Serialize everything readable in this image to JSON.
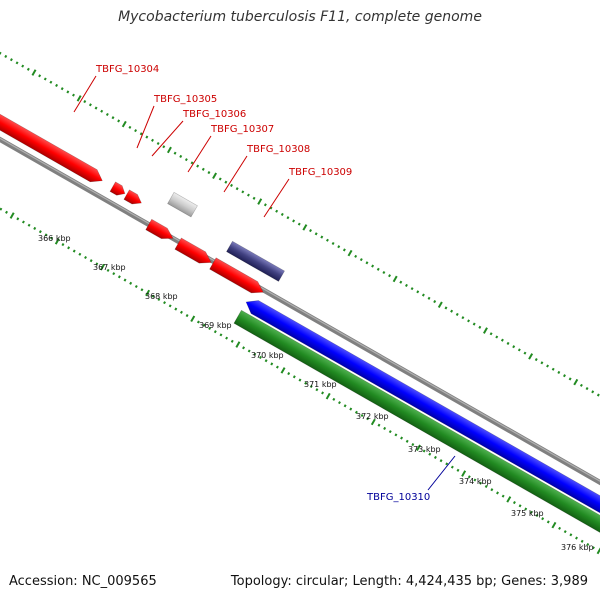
{
  "title": "Mycobacterium tuberculosis F11, complete genome",
  "footer": {
    "accession": "Accession: NC_009565",
    "summary": "Topology: circular; Length: 4,424,435 bp; Genes: 3,989"
  },
  "scale_labels": [
    "366 kbp",
    "367 kbp",
    "368 kbp",
    "369 kbp",
    "370 kbp",
    "371 kbp",
    "372 kbp",
    "373 kbp",
    "374 kbp",
    "375 kbp",
    "376 kbp"
  ],
  "genes": [
    {
      "name": "TBFG_10304",
      "strand": "+",
      "color": "#ff0000"
    },
    {
      "name": "TBFG_10305",
      "strand": "+",
      "color": "#ff0000"
    },
    {
      "name": "TBFG_10306",
      "strand": "+",
      "color": "#ff0000"
    },
    {
      "name": "TBFG_10307",
      "strand": "+",
      "color": "#cccccc"
    },
    {
      "name": "TBFG_10308",
      "strand": "+",
      "color": "#ff0000"
    },
    {
      "name": "TBFG_10309",
      "strand": "+",
      "color": "#404080"
    },
    {
      "name": "TBFG_10310",
      "strand": "-",
      "color": "#0000ff"
    }
  ],
  "colors": {
    "forward_gene": "#ff0000",
    "reverse_gene": "#0000ff",
    "rna": "#228b22",
    "backbone": "#808080",
    "ticks": "#228b22",
    "forward_label": "#cc0000",
    "reverse_label": "#000099"
  }
}
